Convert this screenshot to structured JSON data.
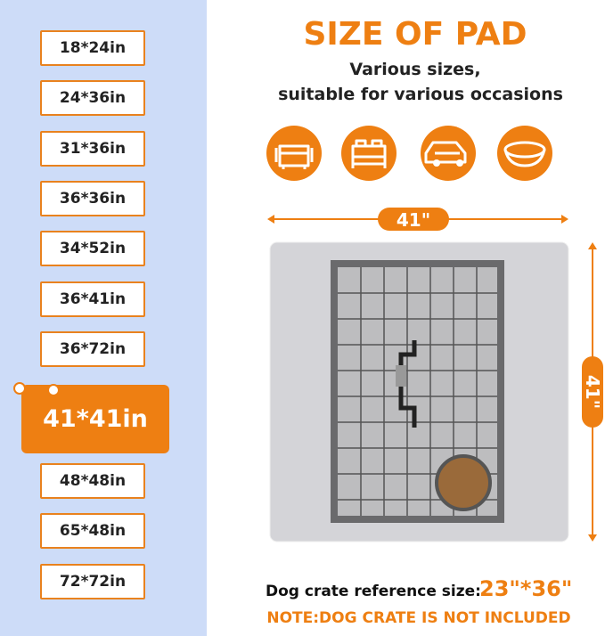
{
  "sizes": [
    "18*24in",
    "24*36in",
    "31*36in",
    "36*36in",
    "34*52in",
    "36*41in",
    "36*72in",
    "41*41in",
    "48*48in",
    "65*48in",
    "72*72in"
  ],
  "selected": 7,
  "title": "SIZE OF PAD",
  "subtitle": [
    "Various sizes,",
    "suitable for various occasions"
  ],
  "width_label": "41\"",
  "height_label": "41\"",
  "reference_label": "Dog crate reference size:",
  "reference_value": "23\"*36\"",
  "note": "NOTE:DOG CRATE IS NOT INCLUDED"
}
